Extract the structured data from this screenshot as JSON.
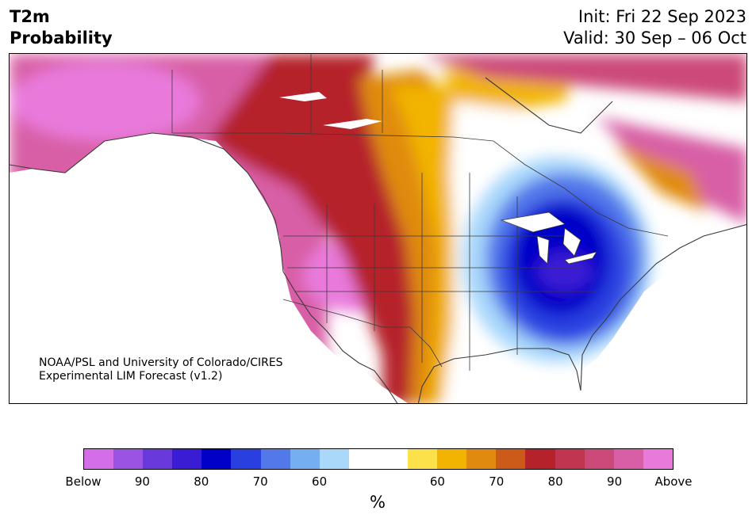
{
  "header": {
    "title_line1": "T2m",
    "title_line2": "Probability",
    "init_text": "Init: Fri 22 Sep 2023",
    "valid_text": "Valid: 30 Sep – 06 Oct"
  },
  "credit": {
    "line1": "NOAA/PSL and University of Colorado/CIRES",
    "line2": "Experimental LIM Forecast (v1.2)"
  },
  "colorbar": {
    "unit": "%",
    "colors": [
      "#d36ee8",
      "#9a53e2",
      "#6a39dc",
      "#3a1cd4",
      "#0000c8",
      "#2a3fe0",
      "#5378ea",
      "#76aef2",
      "#a9d8fb",
      "#ffffff",
      "#ffffff",
      "#fde14a",
      "#f2b400",
      "#e08b10",
      "#cc5a18",
      "#b5222a",
      "#c0354f",
      "#cc4a7a",
      "#d85fa6",
      "#e97adc"
    ],
    "tick_labels": [
      "Below",
      "90",
      "80",
      "70",
      "60",
      "60",
      "70",
      "80",
      "90",
      "Above"
    ]
  },
  "legend_colors": {
    "above": "#e97adc",
    "warm_high": "#b5222a",
    "warm_mid": "#f2b400",
    "cool_mid": "#76aef2",
    "cool_high": "#0000c8",
    "below": "#d36ee8"
  }
}
